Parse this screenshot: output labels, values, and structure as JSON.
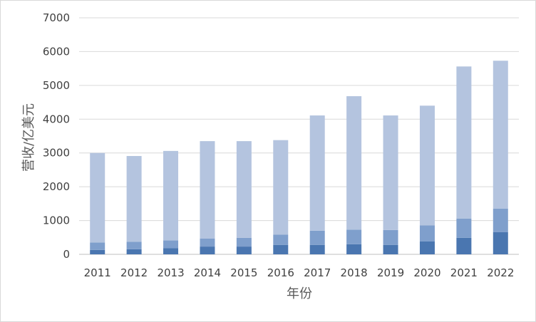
{
  "chart_data": {
    "type": "bar",
    "stacked": true,
    "title": "",
    "xlabel": "年份",
    "ylabel": "营收/亿美元",
    "ylim": [
      0,
      7000
    ],
    "yticks": [
      0,
      1000,
      2000,
      3000,
      4000,
      5000,
      6000,
      7000
    ],
    "categories": [
      "2011",
      "2012",
      "2013",
      "2014",
      "2015",
      "2016",
      "2017",
      "2018",
      "2019",
      "2020",
      "2021",
      "2022"
    ],
    "grid": true,
    "legend": "none",
    "series": [
      {
        "color": "#4a76b0",
        "values": [
          130,
          150,
          180,
          230,
          230,
          280,
          280,
          300,
          280,
          380,
          490,
          660
        ]
      },
      {
        "color": "#7f9fcc",
        "values": [
          220,
          220,
          230,
          240,
          260,
          300,
          420,
          430,
          440,
          480,
          570,
          690
        ]
      },
      {
        "color": "#b4c4df",
        "values": [
          2650,
          2540,
          2650,
          2880,
          2860,
          2800,
          3410,
          3950,
          3390,
          3540,
          4500,
          4380
        ]
      }
    ]
  }
}
